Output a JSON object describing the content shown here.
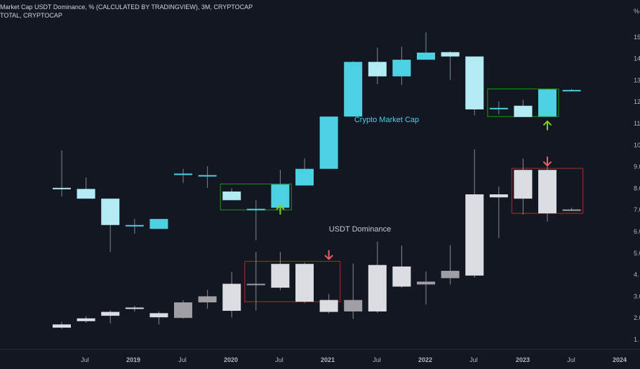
{
  "legend": {
    "line1": "Market Cap USDT Dominance, % (CALCULATED BY TRADINGVIEW), 3M, CRYPTOCAP",
    "line2": "TOTAL, CRYPTOCAP"
  },
  "colors": {
    "background": "#131722",
    "up_cyan": "#4dd0e1",
    "down_cyan": "#b2ebf2",
    "up_gray": "#9e9ea4",
    "down_gray": "#dcdde2",
    "green_box": "#1b7a1b",
    "red_box": "#8b2a22",
    "green_arrow": "#7ed321",
    "red_arrow": "#f06060",
    "label_cyan": "#4dd0e1",
    "label_gray": "#c8c8cc"
  },
  "annotations": {
    "crypto_market_cap": "Crypto Market Cap",
    "usdt_dominance": "USDT Dominance"
  },
  "chart_data": [
    {
      "type": "candlestick",
      "series_name": "Crypto Market Cap",
      "x": [
        "2018 Q1",
        "2018 Q2",
        "2018 Q3",
        "2018 Q4",
        "2019 Q1",
        "2019 Q2",
        "2019 Q3",
        "2019 Q4",
        "2020 Q1",
        "2020 Q2",
        "2020 Q3",
        "2020 Q4",
        "2021 Q1",
        "2021 Q2",
        "2021 Q3",
        "2021 Q4",
        "2022 Q1",
        "2022 Q2",
        "2022 Q3",
        "2022 Q4",
        "2023 Q1",
        "2023 Q2"
      ],
      "open": [
        8.02,
        7.97,
        7.52,
        6.3,
        6.12,
        8.68,
        8.61,
        7.85,
        7.05,
        7.1,
        8.13,
        8.9,
        11.32,
        13.85,
        13.18,
        13.95,
        14.3,
        14.1,
        11.72,
        11.82,
        11.32,
        12.52
      ],
      "close": [
        7.98,
        7.52,
        6.3,
        6.3,
        6.58,
        8.68,
        8.61,
        7.45,
        7.05,
        8.18,
        8.9,
        11.32,
        13.85,
        13.18,
        13.95,
        14.28,
        14.1,
        11.65,
        11.72,
        11.3,
        12.58,
        12.55
      ],
      "high": [
        9.75,
        8.5,
        7.52,
        6.58,
        6.58,
        8.9,
        9.02,
        8.0,
        7.45,
        8.85,
        9.38,
        11.32,
        13.88,
        14.5,
        14.55,
        15.22,
        14.34,
        14.1,
        12.02,
        12.1,
        12.6,
        12.6
      ],
      "low": [
        7.62,
        7.52,
        5.05,
        5.9,
        6.12,
        8.25,
        8.02,
        7.45,
        5.59,
        7.1,
        8.13,
        8.9,
        11.32,
        12.82,
        12.78,
        13.95,
        13.02,
        11.38,
        11.42,
        11.3,
        11.32,
        12.5
      ]
    },
    {
      "type": "candlestick",
      "series_name": "USDT Dominance",
      "x": [
        "2018 Q1",
        "2018 Q2",
        "2018 Q3",
        "2018 Q4",
        "2019 Q1",
        "2019 Q2",
        "2019 Q3",
        "2019 Q4",
        "2020 Q1",
        "2020 Q2",
        "2020 Q3",
        "2020 Q4",
        "2021 Q1",
        "2021 Q2",
        "2021 Q3",
        "2021 Q4",
        "2022 Q1",
        "2022 Q2",
        "2022 Q3",
        "2022 Q4",
        "2023 Q1",
        "2023 Q2"
      ],
      "open": [
        1.7,
        1.98,
        2.28,
        2.48,
        2.22,
        2.0,
        2.72,
        3.58,
        3.55,
        4.5,
        4.5,
        2.83,
        2.3,
        4.45,
        4.38,
        3.55,
        3.84,
        7.72,
        7.72,
        8.85,
        8.85,
        6.98
      ],
      "close": [
        1.55,
        1.85,
        2.1,
        2.45,
        2.03,
        2.72,
        3.0,
        2.33,
        3.58,
        3.4,
        2.75,
        2.28,
        2.83,
        2.3,
        3.45,
        3.68,
        4.18,
        3.96,
        7.58,
        7.52,
        6.84,
        7.02
      ],
      "high": [
        1.82,
        2.08,
        2.35,
        2.56,
        2.3,
        2.82,
        3.3,
        4.13,
        5.06,
        5.06,
        4.57,
        3.1,
        4.52,
        5.53,
        5.35,
        4.15,
        5.37,
        9.8,
        8.08,
        9.38,
        9.05,
        7.1
      ],
      "low": [
        1.5,
        1.78,
        1.75,
        2.3,
        1.7,
        1.97,
        2.42,
        2.02,
        2.34,
        3.28,
        2.68,
        2.2,
        1.95,
        2.23,
        3.4,
        2.62,
        3.55,
        3.86,
        5.7,
        6.78,
        6.46,
        6.95
      ]
    }
  ],
  "axes": {
    "x_ticks": [
      "Jul",
      "2019",
      "Jul",
      "2020",
      "Jul",
      "2021",
      "Jul",
      "2022",
      "Jul",
      "2023",
      "Jul",
      "2024"
    ],
    "x_bold": [
      false,
      true,
      false,
      true,
      false,
      true,
      false,
      true,
      false,
      true,
      false,
      true
    ],
    "y_ticks": [
      "1.",
      "2.0",
      "3.0",
      "4.",
      "5.0",
      "6.0",
      "7.0",
      "8.0",
      "9.0",
      "10.",
      "11.",
      "12.",
      "13.",
      "14.",
      "15."
    ],
    "y_values": [
      1,
      2,
      3,
      4,
      5,
      6,
      7,
      8,
      9,
      10,
      11,
      12,
      13,
      14,
      15
    ],
    "y_top": "%"
  },
  "boxes": [
    {
      "name": "green-box-2020",
      "color": "green",
      "q_start": 7,
      "q_end": 9,
      "y_low": 7.0,
      "y_high": 8.2
    },
    {
      "name": "green-box-2023",
      "color": "green",
      "q_start": 18,
      "q_end": 20,
      "y_low": 11.32,
      "y_high": 12.6
    },
    {
      "name": "red-box-2020",
      "color": "red",
      "q_start": 8,
      "q_end": 11,
      "y_low": 2.75,
      "y_high": 4.62
    },
    {
      "name": "red-box-2023",
      "color": "red",
      "q_start": 19,
      "q_end": 21,
      "y_low": 6.84,
      "y_high": 8.92
    }
  ],
  "arrows": [
    {
      "name": "green-up-arrow-2020",
      "dir": "up",
      "color": "green",
      "q": 9,
      "y": 7.2
    },
    {
      "name": "green-up-arrow-2023",
      "dir": "up",
      "color": "green",
      "q": 20,
      "y": 11.1
    },
    {
      "name": "red-down-arrow-2020",
      "dir": "down",
      "color": "red",
      "q": 11,
      "y": 4.72
    },
    {
      "name": "red-down-arrow-2023",
      "dir": "down",
      "color": "red",
      "q": 20,
      "y": 9.05
    }
  ]
}
